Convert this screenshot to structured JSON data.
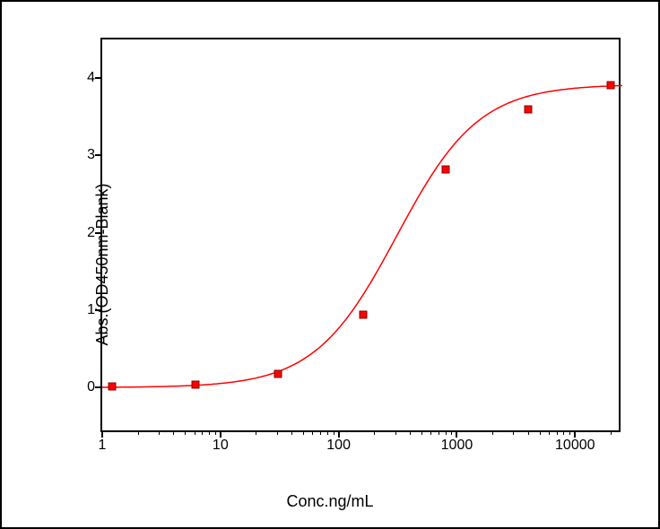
{
  "chart": {
    "type": "scatter-line-logx",
    "xlabel": "Conc.ng/mL",
    "ylabel": "Abs.(OD450nm-Blank)",
    "ylim": [
      -0.6,
      4.5
    ],
    "xlim_log": [
      0,
      4.4
    ],
    "yticks": [
      0,
      1,
      2,
      3,
      4
    ],
    "xticks": [
      {
        "log": 0,
        "label": "1"
      },
      {
        "log": 1,
        "label": "10"
      },
      {
        "log": 2,
        "label": "100"
      },
      {
        "log": 3,
        "label": "1000"
      },
      {
        "log": 4,
        "label": "10000"
      }
    ],
    "marker_color": "#ff0000",
    "marker_border": "#8b0000",
    "line_color": "#ff0000",
    "line_width": 1.5,
    "background_color": "#ffffff",
    "data_points": [
      {
        "x": 1.22,
        "y": 0.01
      },
      {
        "x": 6.1,
        "y": 0.04
      },
      {
        "x": 30.5,
        "y": 0.18
      },
      {
        "x": 160,
        "y": 0.94
      },
      {
        "x": 800,
        "y": 2.82
      },
      {
        "x": 4000,
        "y": 3.6
      },
      {
        "x": 20000,
        "y": 3.91
      }
    ],
    "curve": {
      "A": 0.0,
      "D": 3.92,
      "C": 310,
      "B": 1.25
    }
  }
}
